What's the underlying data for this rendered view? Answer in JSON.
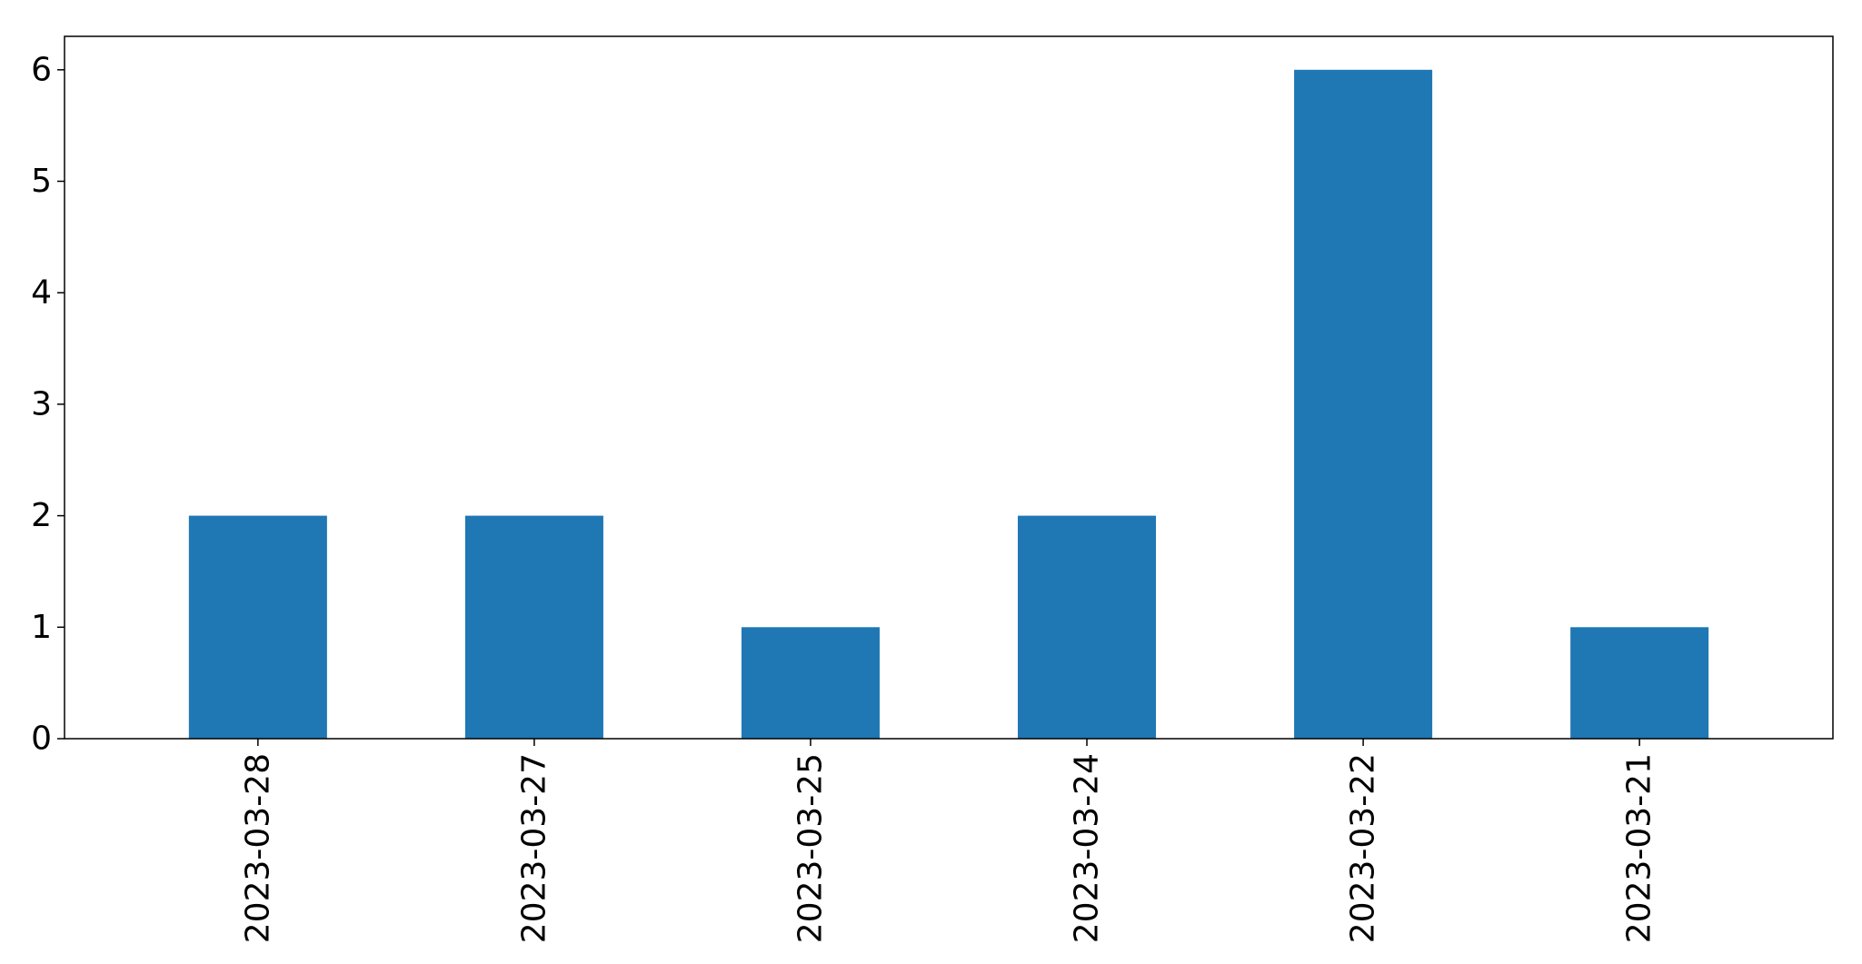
{
  "chart_data": {
    "type": "bar",
    "categories": [
      "2023-03-28",
      "2023-03-27",
      "2023-03-25",
      "2023-03-24",
      "2023-03-22",
      "2023-03-21"
    ],
    "values": [
      2,
      2,
      1,
      2,
      6,
      1
    ],
    "title": "",
    "xlabel": "",
    "ylabel": "",
    "ylim": [
      0,
      6.3
    ],
    "yticks": [
      0,
      1,
      2,
      3,
      4,
      5,
      6
    ],
    "ytick_labels": [
      "0",
      "1",
      "2",
      "3",
      "4",
      "5",
      "6"
    ],
    "x_tick_rotation": "vertical",
    "grid": false,
    "legend": "none",
    "bar_color": "#1f77b4"
  }
}
